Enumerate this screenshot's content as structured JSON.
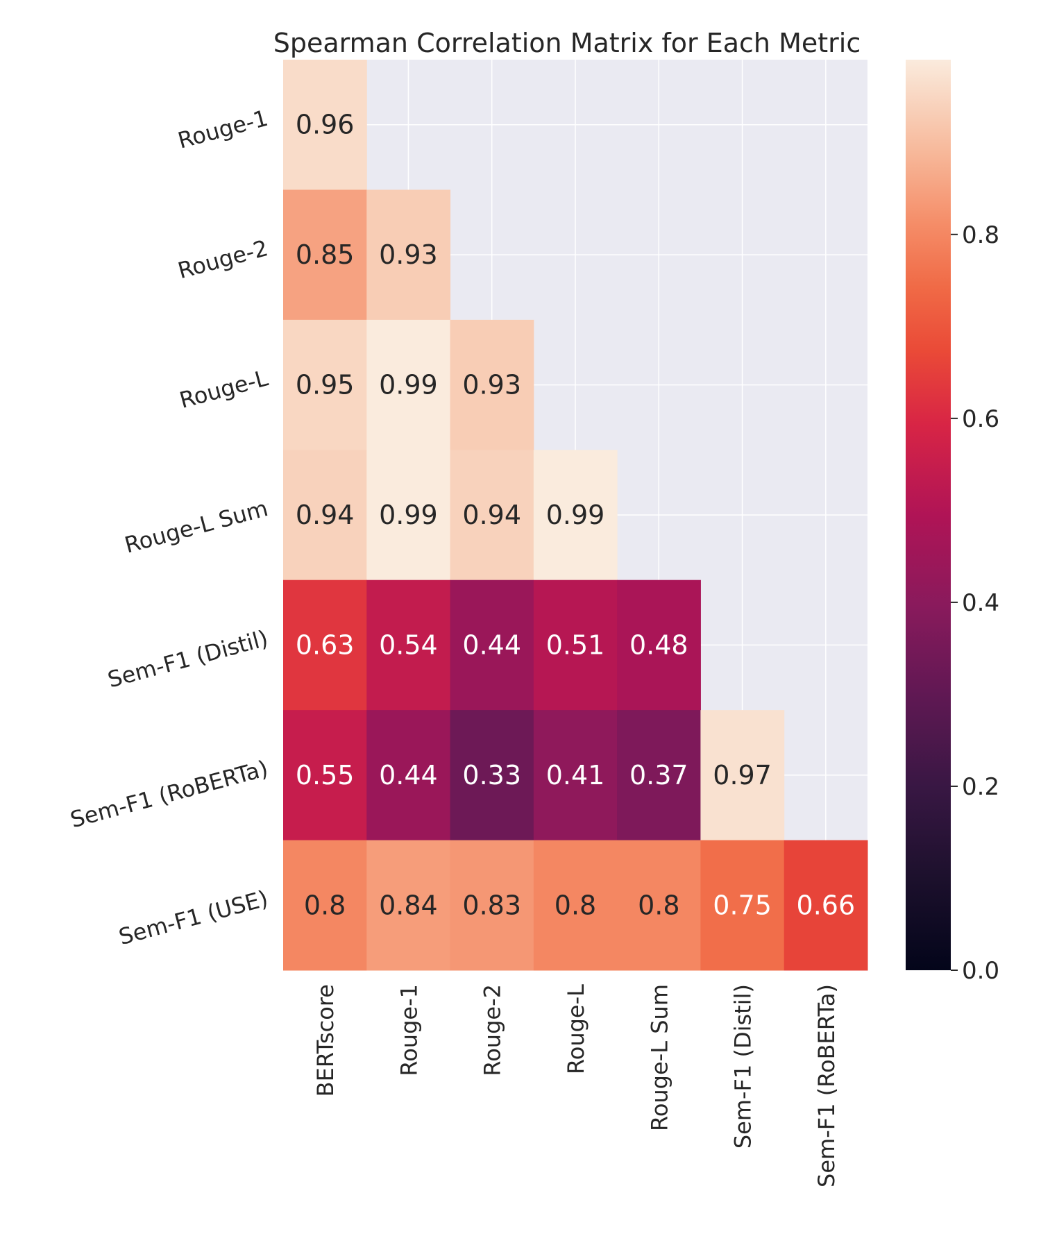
{
  "chart_data": {
    "type": "heatmap",
    "title": "Spearman Correlation Matrix for Each Metric",
    "mask": "upper-triangle",
    "x_categories": [
      "BERTscore",
      "Rouge-1",
      "Rouge-2",
      "Rouge-L",
      "Rouge-L Sum",
      "Sem-F1 (Distil)",
      "Sem-F1 (RoBERTa)"
    ],
    "y_categories": [
      "Rouge-1",
      "Rouge-2",
      "Rouge-L",
      "Rouge-L Sum",
      "Sem-F1 (Distil)",
      "Sem-F1 (RoBERTa)",
      "Sem-F1 (USE)"
    ],
    "values": [
      [
        0.96,
        null,
        null,
        null,
        null,
        null,
        null
      ],
      [
        0.85,
        0.93,
        null,
        null,
        null,
        null,
        null
      ],
      [
        0.95,
        0.99,
        0.93,
        null,
        null,
        null,
        null
      ],
      [
        0.94,
        0.99,
        0.94,
        0.99,
        null,
        null,
        null
      ],
      [
        0.63,
        0.54,
        0.44,
        0.51,
        0.48,
        null,
        null
      ],
      [
        0.55,
        0.44,
        0.33,
        0.41,
        0.37,
        0.97,
        null
      ],
      [
        0.8,
        0.84,
        0.83,
        0.8,
        0.8,
        0.75,
        0.66
      ]
    ],
    "colorbar": {
      "colormap": "rocket",
      "range": [
        0.0,
        0.99
      ],
      "ticks": [
        "0.0",
        "0.2",
        "0.4",
        "0.6",
        "0.8"
      ]
    },
    "background_color": "#eaeaf2",
    "grid": true
  }
}
